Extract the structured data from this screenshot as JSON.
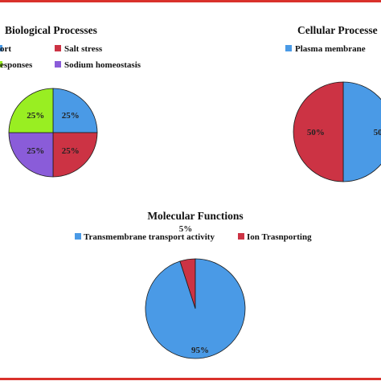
{
  "chart_data": [
    {
      "type": "pie",
      "title": "Biological Processes",
      "legend": [
        "ort",
        "Salt stress",
        "esponses",
        "Sodium homeostasis"
      ],
      "slices": [
        {
          "label": "ort",
          "value": 25,
          "color": "#4a9ae6",
          "text": "25%"
        },
        {
          "label": "Salt stress",
          "value": 25,
          "color": "#cc3344",
          "text": "25%"
        },
        {
          "label": "esponses",
          "value": 25,
          "color": "#99ee22",
          "text": "25%"
        },
        {
          "label": "Sodium homeostasis",
          "value": 25,
          "color": "#8a5cd9",
          "text": "25%"
        }
      ]
    },
    {
      "type": "pie",
      "title": "Cellular Processe",
      "legend": [
        "Plasma membrane"
      ],
      "slices": [
        {
          "label": "Plasma membrane",
          "value": 50,
          "color": "#4a9ae6",
          "text": "50"
        },
        {
          "label": "",
          "value": 50,
          "color": "#cc3344",
          "text": "50%"
        }
      ]
    },
    {
      "type": "pie",
      "title": "Molecular Functions",
      "legend": [
        "Transmembrane transport activity",
        "Ion Trasnporting"
      ],
      "slices": [
        {
          "label": "Transmembrane transport activity",
          "value": 95,
          "color": "#4a9ae6",
          "text": "95%"
        },
        {
          "label": "Ion Trasnporting",
          "value": 5,
          "color": "#cc3344",
          "text": "5%"
        }
      ]
    }
  ]
}
